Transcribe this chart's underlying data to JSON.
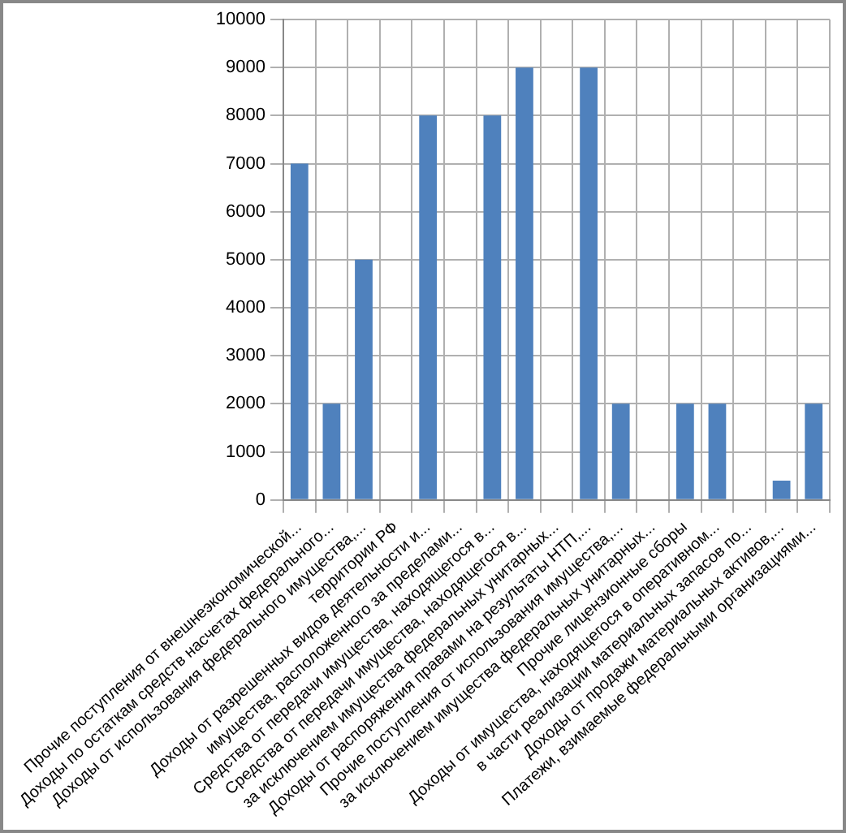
{
  "chart_data": {
    "type": "bar",
    "categories": [
      "Прочие поступления от внешнеэкономической...",
      "Доходы по остаткам средств насчетах федерального...",
      "Доходы от использования федерального имущества,...",
      "территории РФ",
      "Доходы от разрешенных видов деятельности и...",
      "имущества, расположенного за пределами...",
      "Средства от передачи имущества, находящегося в...",
      "Средства от передачи имущества, находящегося в...",
      "за исключением имущества федеральных унитарных...",
      "Доходы от распоряжения правами на результаты НТП,...",
      "Прочие поступления от использования имущества,...",
      "за исключением имущества федеральных унитарных...",
      "Прочие лицензионные сборы",
      "Доходы от имущества, находящегося в оперативном...",
      "в части реализации материальных запасов по...",
      "Доходы от продажи материальных активов,...",
      "Платежи, взимаемые федеральными организациями..."
    ],
    "values": [
      7000,
      2000,
      5000,
      0,
      8000,
      0,
      8000,
      9000,
      0,
      9000,
      2000,
      0,
      2000,
      2000,
      0,
      400,
      2000
    ],
    "color": "#4f81bd",
    "ylim": [
      0,
      10000
    ],
    "yticks": [
      0,
      1000,
      2000,
      3000,
      4000,
      5000,
      6000,
      7000,
      8000,
      9000,
      10000
    ],
    "grid": true,
    "legend": false
  }
}
